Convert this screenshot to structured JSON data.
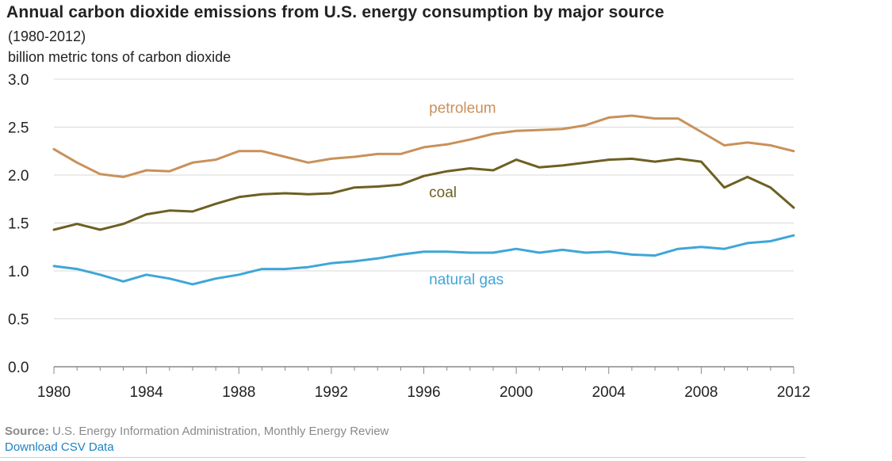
{
  "chart_data": {
    "type": "line",
    "title": "Annual carbon dioxide emissions from U.S. energy consumption by major source",
    "subtitle": "(1980-2012)",
    "ylabel": "billion metric tons of carbon dioxide",
    "xlim": [
      1980,
      2012
    ],
    "ylim": [
      0,
      3.0
    ],
    "xticks": [
      1980,
      1984,
      1988,
      1992,
      1996,
      2000,
      2004,
      2008,
      2012
    ],
    "yticks": [
      0.0,
      0.5,
      1.0,
      1.5,
      2.0,
      2.5,
      3.0
    ],
    "ytick_labels": [
      "0.0",
      "0.5",
      "1.0",
      "1.5",
      "2.0",
      "2.5",
      "3.0"
    ],
    "grid": true,
    "x": [
      1980,
      1981,
      1982,
      1983,
      1984,
      1985,
      1986,
      1987,
      1988,
      1989,
      1990,
      1991,
      1992,
      1993,
      1994,
      1995,
      1996,
      1997,
      1998,
      1999,
      2000,
      2001,
      2002,
      2003,
      2004,
      2005,
      2006,
      2007,
      2008,
      2009,
      2010,
      2011,
      2012
    ],
    "series": [
      {
        "name": "petroleum",
        "color": "#c8915a",
        "values": [
          2.27,
          2.13,
          2.01,
          1.98,
          2.05,
          2.04,
          2.13,
          2.16,
          2.25,
          2.25,
          2.19,
          2.13,
          2.17,
          2.19,
          2.22,
          2.22,
          2.29,
          2.32,
          2.37,
          2.43,
          2.46,
          2.47,
          2.48,
          2.52,
          2.6,
          2.62,
          2.59,
          2.59,
          2.45,
          2.31,
          2.34,
          2.31,
          2.25
        ]
      },
      {
        "name": "coal",
        "color": "#6e5f23",
        "values": [
          1.43,
          1.49,
          1.43,
          1.49,
          1.59,
          1.63,
          1.62,
          1.7,
          1.77,
          1.8,
          1.81,
          1.8,
          1.81,
          1.87,
          1.88,
          1.9,
          1.99,
          2.04,
          2.07,
          2.05,
          2.16,
          2.08,
          2.1,
          2.13,
          2.16,
          2.17,
          2.14,
          2.17,
          2.14,
          1.87,
          1.98,
          1.87,
          1.66
        ]
      },
      {
        "name": "natural gas",
        "color": "#3ea6d8",
        "values": [
          1.05,
          1.02,
          0.96,
          0.89,
          0.96,
          0.92,
          0.86,
          0.92,
          0.96,
          1.02,
          1.02,
          1.04,
          1.08,
          1.1,
          1.13,
          1.17,
          1.2,
          1.2,
          1.19,
          1.19,
          1.23,
          1.19,
          1.22,
          1.19,
          1.2,
          1.17,
          1.16,
          1.23,
          1.25,
          1.23,
          1.29,
          1.31,
          1.37
        ]
      }
    ]
  },
  "footer": {
    "source_label": "Source:",
    "source_text": " U.S. Energy Information Administration, Monthly Energy Review",
    "download_label": "Download CSV Data"
  }
}
